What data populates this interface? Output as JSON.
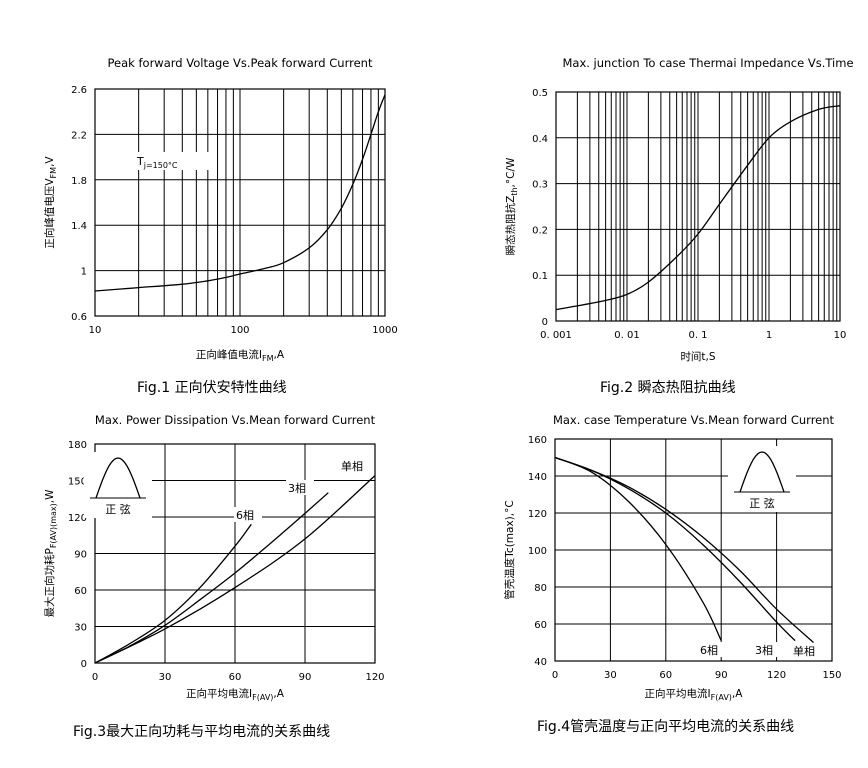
{
  "chart_data": [
    {
      "type": "line",
      "title": "Peak forward Voltage Vs.Peak forward Current",
      "xlabel": "正向峰值电流I_FM,A",
      "ylabel": "正向峰值电压V_FM,V",
      "x_scale": "log",
      "xlim": [
        10,
        1000
      ],
      "ylim": [
        0.6,
        2.6
      ],
      "x_ticks": [
        "10",
        "100",
        "1000"
      ],
      "y_ticks": [
        "0.6",
        "1",
        "1.4",
        "1.8",
        "2.2",
        "2.6"
      ],
      "grid": true,
      "annotation": "T_j=150°C",
      "caption": "Fig.1 正向伏安特性曲线",
      "series": [
        {
          "x": [
            10,
            20,
            40,
            60,
            80,
            100,
            150,
            200,
            300,
            400,
            500,
            600,
            700,
            800,
            900,
            1000
          ],
          "y": [
            0.82,
            0.85,
            0.88,
            0.91,
            0.94,
            0.97,
            1.02,
            1.07,
            1.2,
            1.36,
            1.55,
            1.76,
            1.98,
            2.2,
            2.4,
            2.55
          ]
        }
      ]
    },
    {
      "type": "line",
      "title": "Max. junction To case Thermai Impedance Vs.Time",
      "xlabel": "时间t,S",
      "ylabel": "瞬态热阻抗Z_th,°C/W",
      "x_scale": "log",
      "xlim": [
        0.001,
        10
      ],
      "ylim": [
        0,
        0.5
      ],
      "x_ticks": [
        "0. 001",
        "0. 01",
        "0. 1",
        "1",
        "10"
      ],
      "y_ticks": [
        "0",
        "0.1",
        "0.2",
        "0.3",
        "0.4",
        "0.5"
      ],
      "grid": true,
      "caption": "Fig.2  瞬态热阻抗曲线",
      "series": [
        {
          "x": [
            0.001,
            0.002,
            0.005,
            0.01,
            0.02,
            0.05,
            0.1,
            0.2,
            0.5,
            1,
            2,
            5,
            10
          ],
          "y": [
            0.025,
            0.033,
            0.045,
            0.058,
            0.085,
            0.14,
            0.19,
            0.255,
            0.34,
            0.4,
            0.435,
            0.462,
            0.47
          ]
        }
      ]
    },
    {
      "type": "line",
      "title": "Max. Power Dissipation Vs.Mean forward Current",
      "xlabel": "正向平均电流I_F(AV),A",
      "ylabel": "最大正向功耗P_F(AV)(max),W",
      "xlim": [
        0,
        120
      ],
      "ylim": [
        0,
        180
      ],
      "x_ticks": [
        "0",
        "30",
        "60",
        "90",
        "120"
      ],
      "y_ticks": [
        "0",
        "30",
        "60",
        "90",
        "120",
        "150",
        "180"
      ],
      "grid": true,
      "inset_label": "正 弦",
      "caption": "Fig.3最大正向功耗与平均电流的关系曲线",
      "series": [
        {
          "name": "6相",
          "x": [
            0,
            15,
            30,
            45,
            60,
            67
          ],
          "y": [
            0,
            16,
            35,
            62,
            96,
            114
          ]
        },
        {
          "name": "3相",
          "x": [
            0,
            15,
            30,
            45,
            60,
            75,
            90,
            100
          ],
          "y": [
            0,
            14,
            31,
            52,
            74,
            98,
            123,
            140
          ]
        },
        {
          "name": "单相",
          "x": [
            0,
            30,
            60,
            90,
            120
          ],
          "y": [
            0,
            28,
            62,
            102,
            154
          ]
        }
      ]
    },
    {
      "type": "line",
      "title": "Max. case Temperature Vs.Mean forward Current",
      "xlabel": "正向平均电流I_F(AV),A",
      "ylabel": "管壳温度Tc(max),°C",
      "xlim": [
        0,
        150
      ],
      "ylim": [
        40,
        160
      ],
      "x_ticks": [
        "0",
        "30",
        "60",
        "90",
        "120",
        "150"
      ],
      "y_ticks": [
        "40",
        "60",
        "80",
        "100",
        "120",
        "140",
        "160"
      ],
      "grid": true,
      "inset_label": "正 弦",
      "caption": "Fig.4管壳温度与正向平均电流的关系曲线",
      "series": [
        {
          "name": "6相",
          "x": [
            0,
            20,
            40,
            60,
            80,
            90
          ],
          "y": [
            150,
            142,
            126,
            103,
            72,
            51
          ]
        },
        {
          "name": "3相",
          "x": [
            0,
            20,
            40,
            60,
            80,
            100,
            120,
            130
          ],
          "y": [
            150,
            143,
            133,
            120,
            103,
            83,
            61,
            51
          ]
        },
        {
          "name": "单相",
          "x": [
            0,
            20,
            40,
            60,
            80,
            100,
            120,
            140
          ],
          "y": [
            150,
            143,
            134,
            122,
            107,
            89,
            68,
            50
          ]
        }
      ]
    }
  ]
}
